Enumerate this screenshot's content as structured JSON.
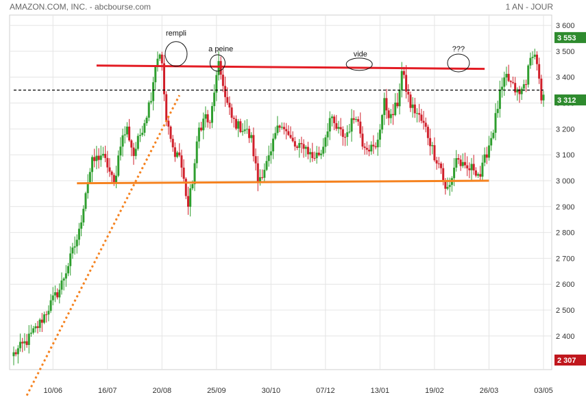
{
  "header": {
    "title": "AMAZON.COM, INC. - abcbourse.com",
    "period": "1 AN - JOUR"
  },
  "colors": {
    "up": "#2e9e2e",
    "down": "#d01f2a",
    "grid": "#e4e4e4",
    "resistance": "#e31b23",
    "support": "#f5821f",
    "last_badge": "#2e8b2e",
    "low_badge": "#c0171d",
    "high_badge": "#2e8b2e"
  },
  "chart_data": {
    "type": "candlestick",
    "title": "AMAZON.COM, INC.",
    "ylim": [
      2270,
      3640
    ],
    "y_ticks": [
      2400,
      2500,
      2600,
      2700,
      2800,
      2900,
      3000,
      3100,
      3200,
      3300,
      3400,
      3500,
      3600
    ],
    "y_tick_labels": [
      "2 400",
      "2 500",
      "2 600",
      "2 700",
      "2 800",
      "2 900",
      "3 000",
      "3 100",
      "3 200",
      "3 300",
      "3 400",
      "3 500",
      "3 600"
    ],
    "x_tick_labels": [
      "10/06",
      "16/07",
      "20/08",
      "25/09",
      "30/10",
      "07/12",
      "13/01",
      "19/02",
      "26/03",
      "03/05"
    ],
    "x_tick_index": [
      18,
      43,
      68,
      93,
      118,
      143,
      168,
      193,
      218,
      243
    ],
    "grid": true,
    "price_badges": [
      {
        "role": "high",
        "value": 3553,
        "label": "3 553"
      },
      {
        "role": "last",
        "value": 3312,
        "label": "3 312"
      },
      {
        "role": "low",
        "value": 2307,
        "label": "2 307"
      }
    ],
    "waypoints": [
      [
        0,
        2330
      ],
      [
        6,
        2380
      ],
      [
        12,
        2450
      ],
      [
        18,
        2540
      ],
      [
        21,
        2580
      ],
      [
        26,
        2700
      ],
      [
        30,
        2800
      ],
      [
        33,
        2960
      ],
      [
        36,
        3070
      ],
      [
        40,
        3100
      ],
      [
        43,
        3060
      ],
      [
        46,
        2980
      ],
      [
        49,
        3150
      ],
      [
        52,
        3200
      ],
      [
        55,
        3100
      ],
      [
        58,
        3180
      ],
      [
        61,
        3260
      ],
      [
        63,
        3330
      ],
      [
        65,
        3450
      ],
      [
        67,
        3500
      ],
      [
        68,
        3440
      ],
      [
        70,
        3230
      ],
      [
        73,
        3120
      ],
      [
        76,
        3100
      ],
      [
        78,
        3000
      ],
      [
        80,
        2900
      ],
      [
        82,
        3000
      ],
      [
        85,
        3200
      ],
      [
        88,
        3250
      ],
      [
        90,
        3210
      ],
      [
        92,
        3350
      ],
      [
        94,
        3440
      ],
      [
        96,
        3380
      ],
      [
        97,
        3320
      ],
      [
        100,
        3240
      ],
      [
        103,
        3210
      ],
      [
        106,
        3200
      ],
      [
        109,
        3160
      ],
      [
        112,
        3000
      ],
      [
        115,
        3050
      ],
      [
        118,
        3100
      ],
      [
        120,
        3180
      ],
      [
        123,
        3230
      ],
      [
        126,
        3170
      ],
      [
        130,
        3120
      ],
      [
        133,
        3140
      ],
      [
        137,
        3090
      ],
      [
        141,
        3110
      ],
      [
        145,
        3240
      ],
      [
        148,
        3200
      ],
      [
        152,
        3170
      ],
      [
        157,
        3260
      ],
      [
        160,
        3150
      ],
      [
        163,
        3130
      ],
      [
        166,
        3120
      ],
      [
        170,
        3300
      ],
      [
        173,
        3240
      ],
      [
        176,
        3300
      ],
      [
        178,
        3420
      ],
      [
        182,
        3290
      ],
      [
        185,
        3260
      ],
      [
        189,
        3200
      ],
      [
        193,
        3100
      ],
      [
        196,
        3050
      ],
      [
        198,
        2960
      ],
      [
        200,
        2980
      ],
      [
        203,
        3090
      ],
      [
        207,
        3040
      ],
      [
        211,
        3050
      ],
      [
        214,
        3020
      ],
      [
        217,
        3110
      ],
      [
        220,
        3200
      ],
      [
        223,
        3330
      ],
      [
        226,
        3400
      ],
      [
        229,
        3360
      ],
      [
        232,
        3330
      ],
      [
        235,
        3390
      ],
      [
        238,
        3500
      ],
      [
        240,
        3460
      ],
      [
        242,
        3300
      ],
      [
        243,
        3312
      ]
    ],
    "lines": [
      {
        "name": "resistance",
        "from": [
          38,
          3445
        ],
        "to": [
          216,
          3432
        ],
        "style": "solid",
        "color_key": "resistance"
      },
      {
        "name": "support",
        "from": [
          29,
          2990
        ],
        "to": [
          218,
          3000
        ],
        "style": "solid",
        "color_key": "support"
      },
      {
        "name": "uptrend",
        "from": [
          6,
          2170
        ],
        "to": [
          76,
          3330
        ],
        "style": "dotted",
        "color_key": "support"
      },
      {
        "name": "reference",
        "from": [
          0,
          3350
        ],
        "to": [
          243,
          3350
        ],
        "style": "dashed",
        "color": "#000000"
      }
    ],
    "annotations": [
      {
        "text": "rempli",
        "index": 74.5,
        "value": 3560,
        "ellipse": {
          "index": 74.5,
          "value": 3490,
          "rx": 16,
          "ry": 18
        }
      },
      {
        "text": "a peine",
        "index": 95,
        "value": 3500,
        "ellipse": {
          "index": 93.5,
          "value": 3455,
          "rx": 11,
          "ry": 12
        }
      },
      {
        "text": "vide",
        "index": 159,
        "value": 3480,
        "ellipse": {
          "index": 158.5,
          "value": 3450,
          "rx": 19,
          "ry": 9
        }
      },
      {
        "text": "???",
        "index": 204,
        "value": 3500,
        "ellipse": {
          "index": 204,
          "value": 3455,
          "rx": 16,
          "ry": 13
        }
      }
    ]
  }
}
